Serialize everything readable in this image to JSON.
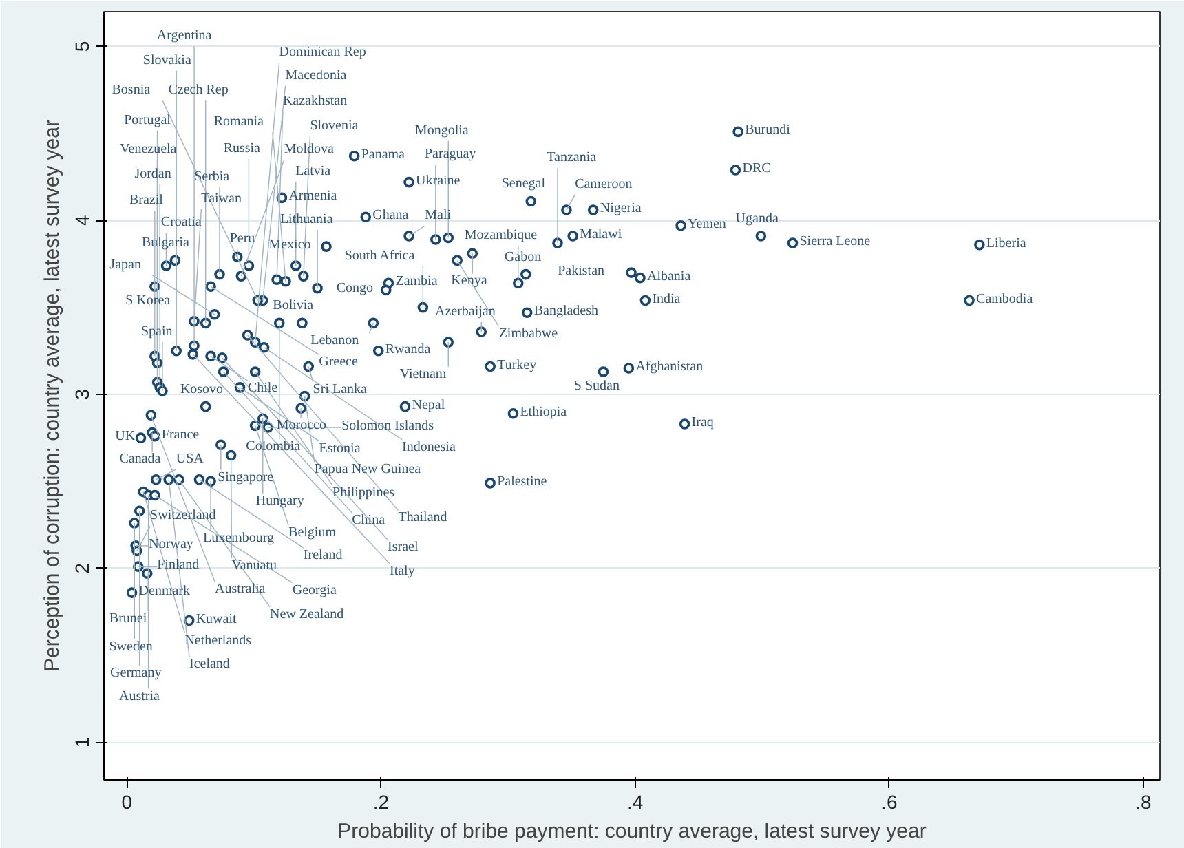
{
  "chart_data": {
    "type": "scatter",
    "xlabel": "Probability of bribe payment: country average, latest survey year",
    "ylabel": "Perception of corruption: country average, latest survey year",
    "xlim": [
      -0.018,
      0.813
    ],
    "ylim": [
      0.784,
      5.2
    ],
    "xticks": [
      {
        "value": 0,
        "label": "0"
      },
      {
        "value": 0.2,
        "label": ".2"
      },
      {
        "value": 0.4,
        "label": ".4"
      },
      {
        "value": 0.6,
        "label": ".6"
      },
      {
        "value": 0.8,
        "label": ".8"
      }
    ],
    "yticks": [
      1,
      2,
      3,
      4,
      5
    ],
    "grid": "y",
    "marker": "circle",
    "color": "#1a476f",
    "x": [
      0.179,
      0.222,
      0.122,
      0.188,
      0.157,
      0.038,
      0.031,
      0.087,
      0.073,
      0.096,
      0.133,
      0.09,
      0.118,
      0.125,
      0.139,
      0.15,
      0.022,
      0.066,
      0.107,
      0.103,
      0.206,
      0.204,
      0.069,
      0.053,
      0.062,
      0.12,
      0.138,
      0.194,
      0.095,
      0.101,
      0.108,
      0.053,
      0.198,
      0.022,
      0.024,
      0.039,
      0.052,
      0.066,
      0.075,
      0.076,
      0.101,
      0.143,
      0.024,
      0.026,
      0.028,
      0.089,
      0.14,
      0.062,
      0.137,
      0.219,
      0.019,
      0.107,
      0.101,
      0.111,
      0.011,
      0.02,
      0.022,
      0.074,
      0.082,
      0.023,
      0.033,
      0.041,
      0.057,
      0.066,
      0.013,
      0.017,
      0.022,
      0.01,
      0.006,
      0.007,
      0.008,
      0.009,
      0.016,
      0.004,
      0.049,
      0.222,
      0.243,
      0.253,
      0.318,
      0.346,
      0.367,
      0.436,
      0.351,
      0.339,
      0.272,
      0.26,
      0.314,
      0.308,
      0.397,
      0.404,
      0.408,
      0.233,
      0.315,
      0.279,
      0.253,
      0.286,
      0.375,
      0.395,
      0.304,
      0.439,
      0.286,
      0.481,
      0.479,
      0.499,
      0.524,
      0.671,
      0.663
    ],
    "values": [
      4.37,
      4.22,
      4.13,
      4.02,
      3.85,
      3.77,
      3.74,
      3.79,
      3.69,
      3.74,
      3.74,
      3.68,
      3.66,
      3.65,
      3.68,
      3.61,
      3.62,
      3.62,
      3.54,
      3.54,
      3.64,
      3.6,
      3.46,
      3.42,
      3.41,
      3.41,
      3.41,
      3.41,
      3.34,
      3.3,
      3.27,
      3.28,
      3.25,
      3.22,
      3.18,
      3.25,
      3.23,
      3.22,
      3.21,
      3.13,
      3.13,
      3.16,
      3.07,
      3.04,
      3.02,
      3.04,
      2.99,
      2.93,
      2.92,
      2.93,
      2.88,
      2.86,
      2.82,
      2.81,
      2.75,
      2.78,
      2.76,
      2.71,
      2.65,
      2.51,
      2.51,
      2.51,
      2.51,
      2.5,
      2.44,
      2.42,
      2.42,
      2.33,
      2.26,
      2.13,
      2.1,
      2.01,
      1.97,
      1.86,
      1.7,
      3.91,
      3.89,
      3.9,
      4.11,
      4.06,
      4.06,
      3.97,
      3.91,
      3.87,
      3.81,
      3.77,
      3.69,
      3.64,
      3.7,
      3.67,
      3.54,
      3.5,
      3.47,
      3.36,
      3.3,
      3.16,
      3.13,
      3.15,
      2.89,
      2.83,
      2.49,
      4.51,
      4.29,
      3.91,
      3.87,
      3.86,
      3.54
    ],
    "annotations": [
      {
        "text": "Panama",
        "x": 0.179,
        "y": 4.37
      },
      {
        "text": "Ukraine",
        "x": 0.222,
        "y": 4.22
      },
      {
        "text": "Armenia",
        "x": 0.122,
        "y": 4.13
      },
      {
        "text": "Ghana",
        "x": 0.188,
        "y": 4.02
      },
      {
        "text": "Mexico",
        "x": 0.157,
        "y": 3.85
      },
      {
        "text": "Bulgaria",
        "x": 0.038,
        "y": 3.77
      },
      {
        "text": "Croatia",
        "x": 0.031,
        "y": 3.74
      },
      {
        "text": "Peru",
        "x": 0.087,
        "y": 3.79
      },
      {
        "text": "Serbia",
        "x": 0.073,
        "y": 3.69
      },
      {
        "text": "Russia",
        "x": 0.096,
        "y": 3.74
      },
      {
        "text": "Latvia",
        "x": 0.133,
        "y": 3.74
      },
      {
        "text": "Moldova",
        "x": 0.09,
        "y": 3.68
      },
      {
        "text": "Kazakhstan",
        "x": 0.118,
        "y": 3.66
      },
      {
        "text": "Romania",
        "x": 0.125,
        "y": 3.65
      },
      {
        "text": "Slovenia",
        "x": 0.139,
        "y": 3.68
      },
      {
        "text": "Lithuania",
        "x": 0.15,
        "y": 3.61
      },
      {
        "text": "S Korea",
        "x": 0.022,
        "y": 3.62
      },
      {
        "text": "Greece",
        "x": 0.066,
        "y": 3.62
      },
      {
        "text": "Macedonia",
        "x": 0.107,
        "y": 3.54
      },
      {
        "text": "Bosnia",
        "x": 0.103,
        "y": 3.54
      },
      {
        "text": "Zambia",
        "x": 0.206,
        "y": 3.64
      },
      {
        "text": "Congo",
        "x": 0.204,
        "y": 3.6
      },
      {
        "text": "Japan",
        "x": 0.069,
        "y": 3.46
      },
      {
        "text": "Taiwan",
        "x": 0.053,
        "y": 3.42
      },
      {
        "text": "Czech Rep",
        "x": 0.062,
        "y": 3.41
      },
      {
        "text": "Colombia",
        "x": 0.12,
        "y": 3.41
      },
      {
        "text": "Bolivia",
        "x": 0.138,
        "y": 3.41
      },
      {
        "text": "Lebanon",
        "x": 0.194,
        "y": 3.41
      },
      {
        "text": "Thailand",
        "x": 0.095,
        "y": 3.34
      },
      {
        "text": "Dominican Rep",
        "x": 0.101,
        "y": 3.3
      },
      {
        "text": "Indonesia",
        "x": 0.108,
        "y": 3.27
      },
      {
        "text": "Argentina",
        "x": 0.053,
        "y": 3.28
      },
      {
        "text": "Rwanda",
        "x": 0.198,
        "y": 3.25
      },
      {
        "text": "Brazil",
        "x": 0.022,
        "y": 3.22
      },
      {
        "text": "Venezuela",
        "x": 0.024,
        "y": 3.18
      },
      {
        "text": "Slovakia",
        "x": 0.039,
        "y": 3.25
      },
      {
        "text": "Italy",
        "x": 0.052,
        "y": 3.23
      },
      {
        "text": "Chile",
        "x": 0.066,
        "y": 3.22
      },
      {
        "text": "Israel",
        "x": 0.075,
        "y": 3.21
      },
      {
        "text": "China",
        "x": 0.076,
        "y": 3.13
      },
      {
        "text": "Philippines",
        "x": 0.101,
        "y": 3.13
      },
      {
        "text": "Sri Lanka",
        "x": 0.143,
        "y": 3.16
      },
      {
        "text": "Portugal",
        "x": 0.024,
        "y": 3.07
      },
      {
        "text": "Jordan",
        "x": 0.026,
        "y": 3.04
      },
      {
        "text": "Spain",
        "x": 0.028,
        "y": 3.02
      },
      {
        "text": "Estonia",
        "x": 0.089,
        "y": 3.04
      },
      {
        "text": "Papua New Guinea",
        "x": 0.14,
        "y": 2.99
      },
      {
        "text": "Kosovo",
        "x": 0.062,
        "y": 2.93
      },
      {
        "text": "Morocco",
        "x": 0.137,
        "y": 2.92
      },
      {
        "text": "Nepal",
        "x": 0.219,
        "y": 2.93
      },
      {
        "text": "Australia",
        "x": 0.019,
        "y": 2.88
      },
      {
        "text": "Hungary",
        "x": 0.107,
        "y": 2.86
      },
      {
        "text": "Belgium",
        "x": 0.101,
        "y": 2.82
      },
      {
        "text": "Solomon Islands",
        "x": 0.111,
        "y": 2.81
      },
      {
        "text": "UK",
        "x": 0.011,
        "y": 2.75
      },
      {
        "text": "Canada",
        "x": 0.02,
        "y": 2.78
      },
      {
        "text": "France",
        "x": 0.022,
        "y": 2.76
      },
      {
        "text": "Singapore",
        "x": 0.074,
        "y": 2.71
      },
      {
        "text": "Vanuatu",
        "x": 0.082,
        "y": 2.65
      },
      {
        "text": "USA",
        "x": 0.023,
        "y": 2.51
      },
      {
        "text": "Iceland",
        "x": 0.033,
        "y": 2.51
      },
      {
        "text": "New Zealand",
        "x": 0.041,
        "y": 2.51
      },
      {
        "text": "Ireland",
        "x": 0.057,
        "y": 2.51
      },
      {
        "text": "Luxembourg",
        "x": 0.066,
        "y": 2.5
      },
      {
        "text": "Netherlands",
        "x": 0.013,
        "y": 2.44
      },
      {
        "text": "Austria",
        "x": 0.017,
        "y": 2.42
      },
      {
        "text": "Georgia",
        "x": 0.022,
        "y": 2.42
      },
      {
        "text": "Germany",
        "x": 0.01,
        "y": 2.33
      },
      {
        "text": "Sweden",
        "x": 0.006,
        "y": 2.26
      },
      {
        "text": "Norway",
        "x": 0.007,
        "y": 2.13
      },
      {
        "text": "Switzerland",
        "x": 0.008,
        "y": 2.1
      },
      {
        "text": "Finland",
        "x": 0.009,
        "y": 2.01
      },
      {
        "text": "Brunei",
        "x": 0.016,
        "y": 1.97
      },
      {
        "text": "Denmark",
        "x": 0.004,
        "y": 1.86
      },
      {
        "text": "Kuwait",
        "x": 0.049,
        "y": 1.7
      },
      {
        "text": "Mali",
        "x": 0.222,
        "y": 3.91
      },
      {
        "text": "Paraguay",
        "x": 0.243,
        "y": 3.89
      },
      {
        "text": "Mongolia",
        "x": 0.253,
        "y": 3.9
      },
      {
        "text": "Senegal",
        "x": 0.318,
        "y": 4.11
      },
      {
        "text": "Cameroon",
        "x": 0.346,
        "y": 4.06
      },
      {
        "text": "Nigeria",
        "x": 0.367,
        "y": 4.06
      },
      {
        "text": "Yemen",
        "x": 0.436,
        "y": 3.97
      },
      {
        "text": "Malawi",
        "x": 0.351,
        "y": 3.91
      },
      {
        "text": "Tanzania",
        "x": 0.339,
        "y": 3.87
      },
      {
        "text": "Kenya",
        "x": 0.272,
        "y": 3.81
      },
      {
        "text": "Zimbabwe",
        "x": 0.26,
        "y": 3.77
      },
      {
        "text": "Gabon",
        "x": 0.314,
        "y": 3.69
      },
      {
        "text": "Mozambique",
        "x": 0.308,
        "y": 3.64
      },
      {
        "text": "Pakistan",
        "x": 0.397,
        "y": 3.7
      },
      {
        "text": "Albania",
        "x": 0.404,
        "y": 3.67
      },
      {
        "text": "India",
        "x": 0.408,
        "y": 3.54
      },
      {
        "text": "South Africa",
        "x": 0.233,
        "y": 3.5
      },
      {
        "text": "Bangladesh",
        "x": 0.315,
        "y": 3.47
      },
      {
        "text": "Azerbaijan",
        "x": 0.279,
        "y": 3.36
      },
      {
        "text": "Vietnam",
        "x": 0.253,
        "y": 3.3
      },
      {
        "text": "Turkey",
        "x": 0.286,
        "y": 3.16
      },
      {
        "text": "S Sudan",
        "x": 0.375,
        "y": 3.13
      },
      {
        "text": "Afghanistan",
        "x": 0.395,
        "y": 3.15
      },
      {
        "text": "Ethiopia",
        "x": 0.304,
        "y": 2.89
      },
      {
        "text": "Iraq",
        "x": 0.439,
        "y": 2.83
      },
      {
        "text": "Palestine",
        "x": 0.286,
        "y": 2.49
      },
      {
        "text": "Burundi",
        "x": 0.481,
        "y": 4.51
      },
      {
        "text": "DRC",
        "x": 0.479,
        "y": 4.29
      },
      {
        "text": "Uganda",
        "x": 0.499,
        "y": 3.91
      },
      {
        "text": "Sierra Leone",
        "x": 0.524,
        "y": 3.87
      },
      {
        "text": "Liberia",
        "x": 0.671,
        "y": 3.86
      },
      {
        "text": "Cambodia",
        "x": 0.663,
        "y": 3.54
      }
    ]
  }
}
